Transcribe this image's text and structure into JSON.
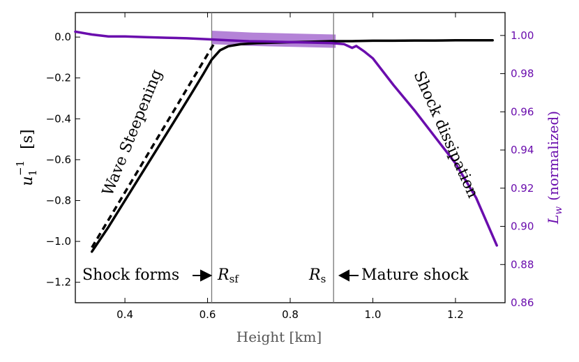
{
  "chart_data": {
    "type": "line",
    "xlabel": "Height [km]",
    "ylabel_left_base": "u",
    "ylabel_left_sub": "1",
    "ylabel_left_sup": "−1",
    "ylabel_left_unit": "[s]",
    "ylabel_right_base": "L",
    "ylabel_right_sub": "w",
    "ylabel_right_unit": "(normalized)",
    "xlim": [
      0.28,
      1.32
    ],
    "ylim_left": [
      -1.3,
      0.12
    ],
    "ylim_right": [
      0.86,
      1.012
    ],
    "x_ticks": [
      0.4,
      0.6,
      0.8,
      1.0,
      1.2
    ],
    "x_tick_labels": [
      "0.4",
      "0.6",
      "0.8",
      "1.0",
      "1.2"
    ],
    "y_left_ticks": [
      0.0,
      -0.2,
      -0.4,
      -0.6,
      -0.8,
      -1.0,
      -1.2
    ],
    "y_left_tick_labels": [
      "0.0",
      "−0.2",
      "−0.4",
      "−0.6",
      "−0.8",
      "−1.0",
      "−1.2"
    ],
    "y_right_ticks": [
      0.86,
      0.88,
      0.9,
      0.92,
      0.94,
      0.96,
      0.98,
      1.0
    ],
    "y_right_tick_labels": [
      "0.86",
      "0.88",
      "0.90",
      "0.92",
      "0.94",
      "0.96",
      "0.98",
      "1.00"
    ],
    "colors": {
      "black_series": "#000000",
      "purple_series": "#6a0dad",
      "band": "#9b59c9",
      "vline": "#777777"
    },
    "series": [
      {
        "name": "u1^-1",
        "axis": "left",
        "style": "solid",
        "x": [
          0.32,
          0.36,
          0.4,
          0.44,
          0.48,
          0.52,
          0.56,
          0.59,
          0.61,
          0.63,
          0.65,
          0.68,
          0.72,
          0.76,
          0.8,
          0.85,
          0.9,
          0.95,
          1.0,
          1.05,
          1.1,
          1.15,
          1.2,
          1.25,
          1.29
        ],
        "y": [
          -1.05,
          -0.93,
          -0.8,
          -0.67,
          -0.54,
          -0.41,
          -0.28,
          -0.18,
          -0.11,
          -0.065,
          -0.045,
          -0.035,
          -0.03,
          -0.027,
          -0.025,
          -0.023,
          -0.02,
          -0.02,
          -0.018,
          -0.018,
          -0.017,
          -0.017,
          -0.016,
          -0.016,
          -0.016
        ]
      },
      {
        "name": "u1^-1 fit",
        "axis": "left",
        "style": "dashed",
        "x": [
          0.32,
          0.36,
          0.4,
          0.44,
          0.48,
          0.52,
          0.56,
          0.6,
          0.615
        ],
        "y": [
          -1.03,
          -0.895,
          -0.76,
          -0.625,
          -0.49,
          -0.355,
          -0.22,
          -0.085,
          -0.035
        ]
      },
      {
        "name": "L_w normalized",
        "axis": "right",
        "style": "solid",
        "x": [
          0.28,
          0.32,
          0.36,
          0.4,
          0.45,
          0.5,
          0.55,
          0.6,
          0.65,
          0.7,
          0.75,
          0.8,
          0.85,
          0.9,
          0.93,
          0.95,
          0.96,
          0.98,
          1.0,
          1.05,
          1.1,
          1.15,
          1.2,
          1.25,
          1.3
        ],
        "y": [
          1.002,
          1.0005,
          0.9995,
          0.9995,
          0.9991,
          0.9988,
          0.9985,
          0.998,
          0.9975,
          0.997,
          0.9968,
          0.9965,
          0.9963,
          0.996,
          0.9955,
          0.9935,
          0.9945,
          0.9915,
          0.988,
          0.974,
          0.961,
          0.947,
          0.933,
          0.915,
          0.89
        ]
      }
    ],
    "band": {
      "axis": "right",
      "x": [
        0.61,
        0.71,
        0.81,
        0.91
      ],
      "y_top": [
        1.0025,
        1.0015,
        1.001,
        1.0005
      ],
      "y_bottom": [
        0.9955,
        0.9945,
        0.994,
        0.9935
      ]
    },
    "vlines": [
      {
        "x": 0.61,
        "label_base": "R",
        "label_sub": "sf"
      },
      {
        "x": 0.905,
        "label_base": "R",
        "label_sub": "s"
      }
    ],
    "annotations": {
      "shock_forms": "Shock forms",
      "mature_shock": "Mature shock",
      "wave_steepening": "Wave Steepening",
      "shock_dissipation": "Shock dissipation"
    }
  }
}
